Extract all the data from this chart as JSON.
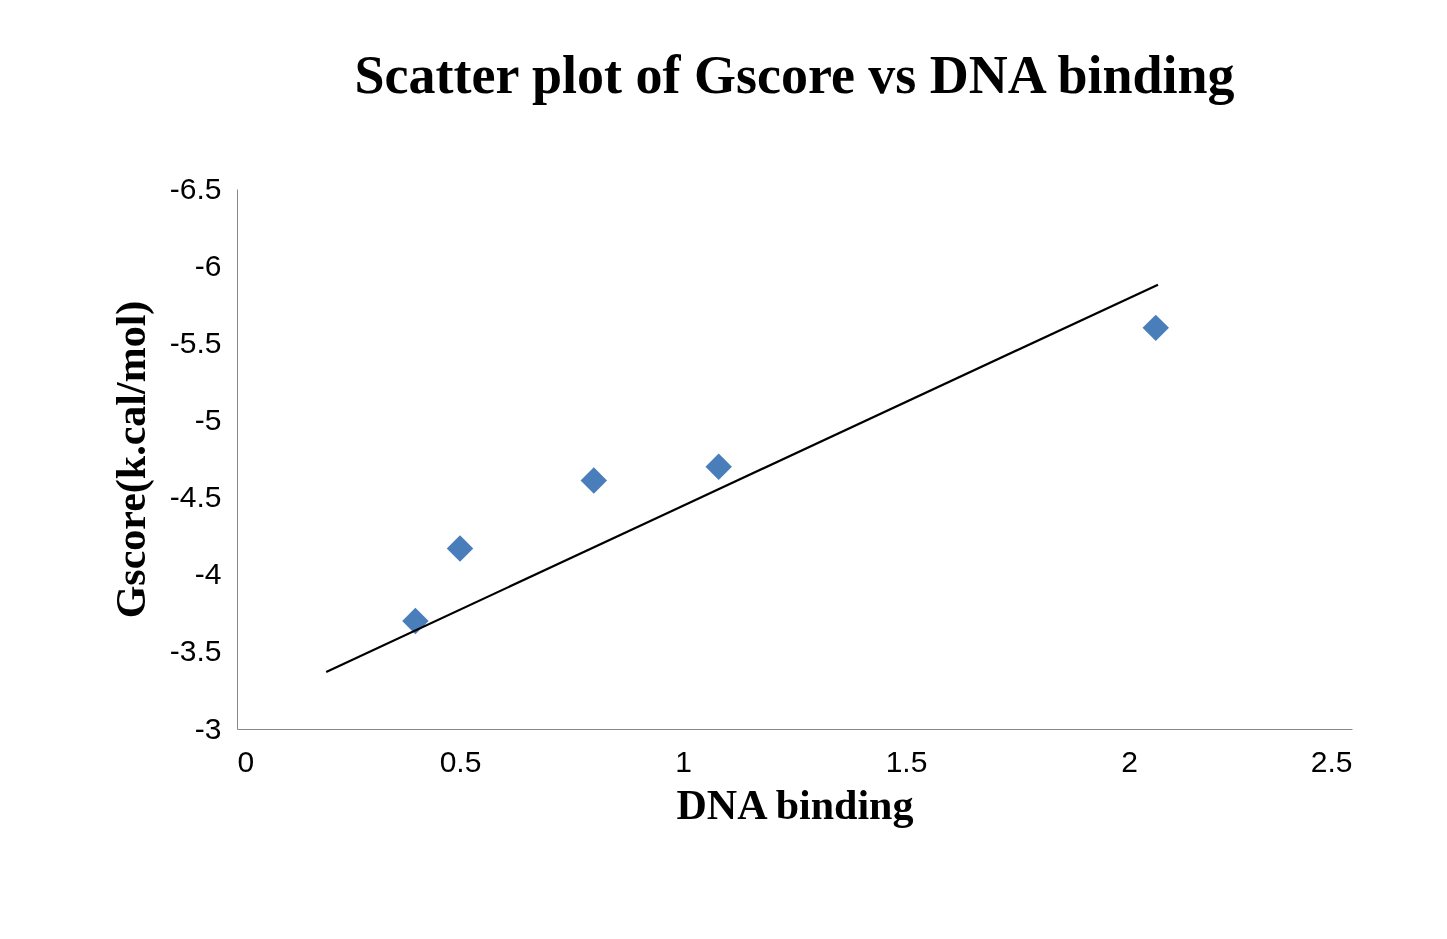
{
  "chart_data": {
    "type": "scatter",
    "title": "Scatter plot of Gscore vs DNA binding",
    "xlabel": "DNA binding",
    "ylabel": "Gscore(k.cal/mol)",
    "x": [
      0.4,
      0.5,
      0.8,
      1.08,
      2.06
    ],
    "series": [
      {
        "color": "#4a7ebb",
        "marker": "diamond",
        "values": [
          -3.7,
          -4.17,
          -4.61,
          -4.7,
          -5.6
        ]
      },
      {
        "type": "line",
        "color": "#000000",
        "x": [
          0.2,
          2.065
        ],
        "values": [
          -3.37,
          -5.88
        ],
        "line_style": "solid",
        "marker": "none"
      }
    ],
    "xlim": [
      0,
      2.5
    ],
    "xticks": [
      0,
      0.5,
      1,
      1.5,
      2,
      2.5
    ],
    "ylim": [
      -3,
      -6.5
    ],
    "yticks": [
      -3,
      -3.5,
      -4,
      -4.5,
      -5,
      -5.5,
      -6,
      -6.5
    ],
    "grid": false
  }
}
